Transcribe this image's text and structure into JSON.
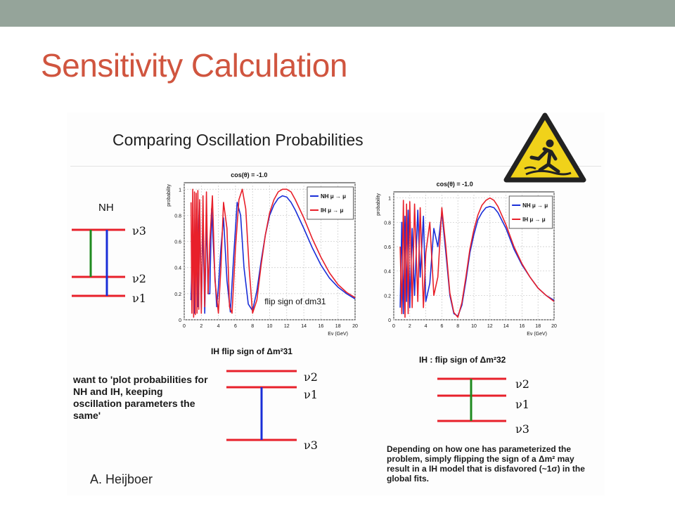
{
  "slide": {
    "title": "Sensitivity Calculation",
    "subtitle": "Comparing Oscillation Probabilities",
    "author": "A. Heijboer",
    "note_left": "want to 'plot probabilities for NH and IH, keeping oscillation parameters the same'",
    "note_right": "Depending on how one has parameterized the problem, simply flipping the sign of a Δm² may result in a IH model that is disfavored (~1σ) in the global fits.",
    "colors": {
      "title": "#d0553f",
      "topbar": "#95a49a",
      "nh": "#1a2fd8",
      "ih": "#e8202a",
      "level": "#e8202a",
      "arrow_green": "#1f8a1f",
      "arrow_blue": "#1a2fd8",
      "caution": "#f0d21a"
    }
  },
  "diagrams": {
    "nh": {
      "label": "NH",
      "levels": [
        "ν3",
        "ν2",
        "ν1"
      ]
    },
    "ih31": {
      "caption": "IH flip sign of Δm²31",
      "levels": [
        "ν2",
        "ν1",
        "ν3"
      ]
    },
    "ih32": {
      "caption": "IH : flip sign of Δm²32",
      "levels": [
        "ν2",
        "ν1",
        "ν3"
      ]
    }
  },
  "icons": {
    "caution": "caution-slippery-floor-icon"
  },
  "chart_data": [
    {
      "type": "line",
      "title": "cos(θ) = -1.0",
      "xlabel": "Eν (GeV)",
      "ylabel": "probability",
      "xlim": [
        0,
        20
      ],
      "ylim": [
        0,
        1.05
      ],
      "xticks": [
        0,
        2,
        4,
        6,
        8,
        10,
        12,
        14,
        16,
        18,
        20
      ],
      "yticks": [
        0,
        0.2,
        0.4,
        0.6,
        0.8,
        1
      ],
      "annotation": "flip sign of dm31",
      "grid": true,
      "legend": "top-right",
      "series": [
        {
          "name": "NH μ → μ",
          "color": "#1a2fd8",
          "x": [
            0.8,
            1.0,
            1.2,
            1.4,
            1.6,
            1.8,
            2.0,
            2.2,
            2.4,
            2.6,
            2.8,
            3.0,
            3.2,
            3.5,
            3.8,
            4.0,
            4.3,
            4.6,
            5.0,
            5.4,
            5.8,
            6.2,
            6.6,
            7.0,
            7.5,
            8.0,
            8.5,
            9.0,
            9.5,
            10,
            10.5,
            11,
            11.5,
            12,
            12.5,
            13,
            14,
            15,
            16,
            17,
            18,
            19,
            20
          ],
          "y": [
            0.15,
            0.7,
            0.05,
            0.85,
            0.1,
            0.9,
            0.08,
            0.75,
            0.05,
            0.8,
            0.2,
            0.2,
            0.85,
            0.45,
            0.1,
            0.25,
            0.55,
            0.78,
            0.3,
            0.06,
            0.5,
            0.9,
            0.8,
            0.4,
            0.12,
            0.07,
            0.22,
            0.45,
            0.65,
            0.8,
            0.88,
            0.93,
            0.95,
            0.94,
            0.9,
            0.84,
            0.7,
            0.55,
            0.42,
            0.32,
            0.25,
            0.2,
            0.16
          ]
        },
        {
          "name": "IH μ → μ",
          "color": "#e8202a",
          "x": [
            0.8,
            0.9,
            1.0,
            1.1,
            1.2,
            1.3,
            1.4,
            1.5,
            1.6,
            1.7,
            1.8,
            2.0,
            2.2,
            2.4,
            2.6,
            2.8,
            3.0,
            3.3,
            3.6,
            4.0,
            4.3,
            4.6,
            5.0,
            5.3,
            5.6,
            6.0,
            6.4,
            6.8,
            7.2,
            7.6,
            8.0,
            8.5,
            9.0,
            9.5,
            10,
            10.5,
            11,
            11.5,
            12,
            12.5,
            13,
            14,
            15,
            16,
            17,
            18,
            19,
            20
          ],
          "y": [
            0.9,
            0.05,
            1.0,
            0.02,
            0.98,
            0.04,
            0.97,
            0.05,
            0.99,
            0.08,
            0.92,
            0.05,
            0.95,
            0.1,
            0.98,
            0.2,
            0.6,
            0.95,
            0.3,
            0.05,
            0.4,
            0.9,
            0.7,
            0.1,
            0.05,
            0.55,
            0.92,
            1.0,
            0.85,
            0.4,
            0.05,
            0.15,
            0.42,
            0.65,
            0.82,
            0.92,
            0.98,
            1.0,
            1.0,
            0.98,
            0.92,
            0.78,
            0.62,
            0.48,
            0.36,
            0.27,
            0.21,
            0.17
          ]
        }
      ]
    },
    {
      "type": "line",
      "title": "cos(θ) = -1.0",
      "xlabel": "Eν (GeV)",
      "ylabel": "probability",
      "xlim": [
        0,
        20
      ],
      "ylim": [
        0,
        1.05
      ],
      "xticks": [
        0,
        2,
        4,
        6,
        8,
        10,
        12,
        14,
        16,
        18,
        20
      ],
      "yticks": [
        0,
        0.2,
        0.4,
        0.6,
        0.8,
        1
      ],
      "annotation": "",
      "grid": true,
      "legend": "top-right",
      "series": [
        {
          "name": "NH μ → μ",
          "color": "#1a2fd8",
          "x": [
            0.8,
            1.0,
            1.2,
            1.4,
            1.6,
            1.8,
            2.0,
            2.3,
            2.6,
            3.0,
            3.3,
            3.7,
            4.0,
            4.5,
            5.0,
            5.5,
            6.0,
            6.5,
            7.0,
            7.5,
            8.0,
            8.5,
            9.0,
            9.5,
            10,
            10.5,
            11,
            11.5,
            12,
            12.5,
            13,
            14,
            15,
            16,
            17,
            18,
            19,
            20
          ],
          "y": [
            0.1,
            0.8,
            0.05,
            0.85,
            0.15,
            0.9,
            0.1,
            0.75,
            0.2,
            0.9,
            0.35,
            0.85,
            0.15,
            0.3,
            0.75,
            0.6,
            0.88,
            0.55,
            0.2,
            0.05,
            0.03,
            0.12,
            0.32,
            0.55,
            0.7,
            0.82,
            0.88,
            0.92,
            0.93,
            0.92,
            0.88,
            0.75,
            0.58,
            0.45,
            0.35,
            0.26,
            0.2,
            0.16
          ]
        },
        {
          "name": "IH μ → μ",
          "color": "#e8202a",
          "x": [
            0.8,
            1.0,
            1.2,
            1.4,
            1.6,
            1.8,
            2.0,
            2.3,
            2.6,
            3.0,
            3.3,
            3.7,
            4.0,
            4.5,
            5.0,
            5.5,
            6.0,
            6.5,
            7.0,
            7.5,
            8.0,
            8.5,
            9.0,
            9.5,
            10,
            10.5,
            11,
            11.5,
            12,
            12.5,
            13,
            14,
            15,
            16,
            17,
            18,
            19,
            20
          ],
          "y": [
            0.6,
            0.05,
            0.98,
            0.02,
            0.95,
            0.05,
            0.97,
            0.1,
            0.95,
            0.15,
            0.92,
            0.1,
            0.55,
            0.8,
            0.2,
            0.35,
            0.92,
            0.6,
            0.22,
            0.06,
            0.02,
            0.14,
            0.35,
            0.58,
            0.74,
            0.86,
            0.94,
            0.98,
            1.0,
            0.98,
            0.93,
            0.78,
            0.6,
            0.46,
            0.35,
            0.26,
            0.2,
            0.15
          ]
        }
      ]
    }
  ]
}
